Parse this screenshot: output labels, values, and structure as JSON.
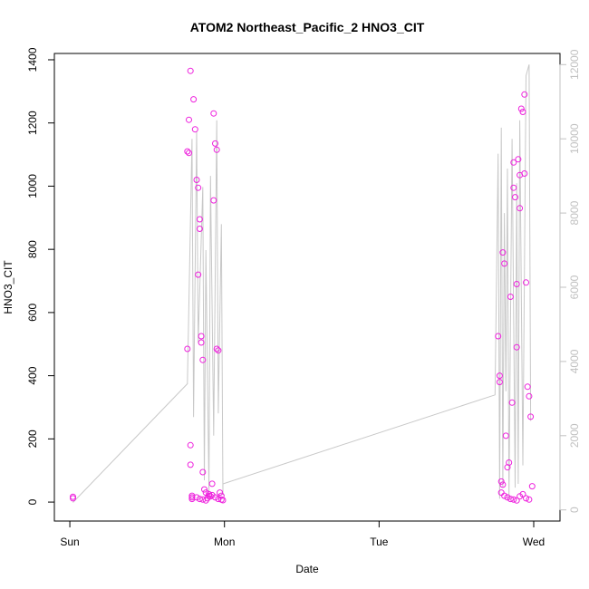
{
  "chart_data": {
    "type": "scatter",
    "title": "ATOM2 Northeast_Pacific_2 HNO3_CIT",
    "xlabel": "Date",
    "ylabel": "HNO3_CIT",
    "x_ticks": [
      "Sun",
      "Mon",
      "Tue",
      "Wed"
    ],
    "x_tick_positions": [
      0,
      1,
      2,
      3
    ],
    "xlim": [
      -0.1,
      3.17
    ],
    "ylim": [
      -60,
      1420
    ],
    "y_ticks": [
      0,
      200,
      400,
      600,
      800,
      1000,
      1200,
      1400
    ],
    "y2lim": [
      -300,
      12300
    ],
    "y2_ticks": [
      0,
      2000,
      4000,
      6000,
      8000,
      10000,
      12000
    ],
    "grid": false,
    "colors": {
      "points": "#ee22dd",
      "secondary_line": "#c8c8c8",
      "secondary_axis": "#c0c0c0"
    },
    "series": [
      {
        "role": "points",
        "x": [
          0.02,
          0.02,
          0.76,
          0.76,
          0.77,
          0.77,
          0.78,
          0.78,
          0.78,
          0.79,
          0.79,
          0.79,
          0.8,
          0.81,
          0.82,
          0.83,
          0.83,
          0.84,
          0.84,
          0.85,
          0.85,
          0.86,
          0.86,
          0.87,
          0.88,
          0.9,
          0.9,
          0.92,
          0.93,
          0.93,
          0.94,
          0.95,
          0.95,
          0.96,
          0.97,
          0.98,
          0.82,
          0.84,
          0.86,
          0.88,
          0.89,
          0.91,
          0.92,
          0.94,
          0.96,
          0.98,
          0.99,
          2.77,
          2.78,
          2.78,
          2.79,
          2.8,
          2.8,
          2.81,
          2.82,
          2.83,
          2.84,
          2.85,
          2.86,
          2.87,
          2.87,
          2.88,
          2.89,
          2.89,
          2.9,
          2.91,
          2.91,
          2.92,
          2.93,
          2.94,
          2.94,
          2.95,
          2.96,
          2.97,
          2.98,
          2.99,
          2.79,
          2.81,
          2.83,
          2.85,
          2.87,
          2.89,
          2.91,
          2.93,
          2.95,
          2.97
        ],
        "y": [
          17,
          12,
          485,
          1110,
          1210,
          1105,
          1365,
          180,
          118,
          20,
          15,
          10,
          1275,
          1180,
          1020,
          995,
          720,
          895,
          865,
          525,
          505,
          450,
          95,
          40,
          30,
          25,
          20,
          58,
          955,
          1230,
          1135,
          1115,
          485,
          480,
          30,
          20,
          15,
          10,
          8,
          5,
          12,
          18,
          22,
          15,
          10,
          8,
          6,
          525,
          400,
          380,
          65,
          55,
          790,
          755,
          210,
          110,
          125,
          650,
          315,
          1075,
          995,
          965,
          690,
          490,
          1085,
          930,
          1035,
          1245,
          1235,
          1290,
          1040,
          695,
          365,
          335,
          270,
          50,
          30,
          20,
          15,
          10,
          8,
          5,
          18,
          25,
          12,
          8
        ]
      },
      {
        "role": "line",
        "axis": "right",
        "x": [
          0.02,
          0.76,
          0.79,
          0.8,
          0.82,
          0.83,
          0.86,
          0.87,
          0.88,
          0.9,
          0.91,
          0.93,
          0.95,
          0.96,
          0.98,
          0.99,
          0.99,
          2.75,
          2.77,
          2.78,
          2.79,
          2.8,
          2.81,
          2.82,
          2.83,
          2.84,
          2.86,
          2.88,
          2.89,
          2.9,
          2.91,
          2.93,
          2.95,
          2.97,
          2.98
        ],
        "y": [
          200,
          3400,
          10000,
          2500,
          10200,
          4500,
          8700,
          800,
          7000,
          500,
          9000,
          2000,
          10500,
          2600,
          7700,
          400,
          700,
          3100,
          9600,
          300,
          10300,
          600,
          8000,
          3200,
          9200,
          300,
          10000,
          600,
          8800,
          700,
          10500,
          1200,
          11700,
          12000,
          2400
        ]
      }
    ]
  }
}
